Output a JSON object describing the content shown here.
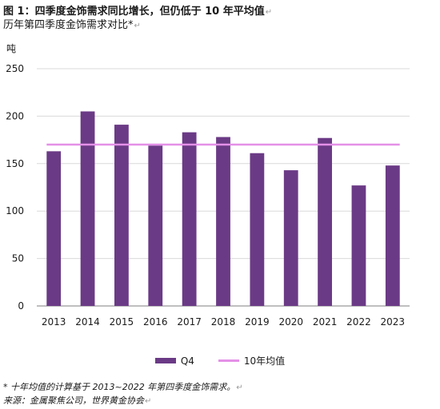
{
  "header": {
    "title_prefix": "图",
    "figure_number": "1",
    "title_text": "：四季度金饰需求同比增长，但仍低于",
    "title_highlight": "10",
    "title_suffix": "年平均值",
    "subtitle": "历年第四季度金饰需求对比*"
  },
  "chart_data": {
    "type": "bar",
    "categories": [
      "2013",
      "2014",
      "2015",
      "2016",
      "2017",
      "2018",
      "2019",
      "2020",
      "2021",
      "2022",
      "2023"
    ],
    "series": [
      {
        "name": "Q4",
        "values": [
          163,
          205,
          191,
          169,
          183,
          178,
          161,
          143,
          177,
          127,
          148
        ],
        "color": "#6b3a86"
      },
      {
        "name": "10年均值",
        "values": [
          170,
          170,
          170,
          170,
          170,
          170,
          170,
          170,
          170,
          170,
          170
        ],
        "color": "#e490e8",
        "style": "line"
      }
    ],
    "ylabel": "吨",
    "ylim": [
      0,
      250
    ],
    "yticks": [
      0,
      50,
      100,
      150,
      200,
      250
    ],
    "grid": true,
    "legend_position": "bottom-center"
  },
  "notes": {
    "note1": "* 十年均值的计算基于 2013~2022 年第四季度金饰需求。",
    "note2": "来源：金属聚焦公司，世界黄金协会"
  },
  "colors": {
    "bar": "#6b3a86",
    "average_line": "#e490e8",
    "grid": "#d9d9d9",
    "axis": "#7f7f7f"
  }
}
